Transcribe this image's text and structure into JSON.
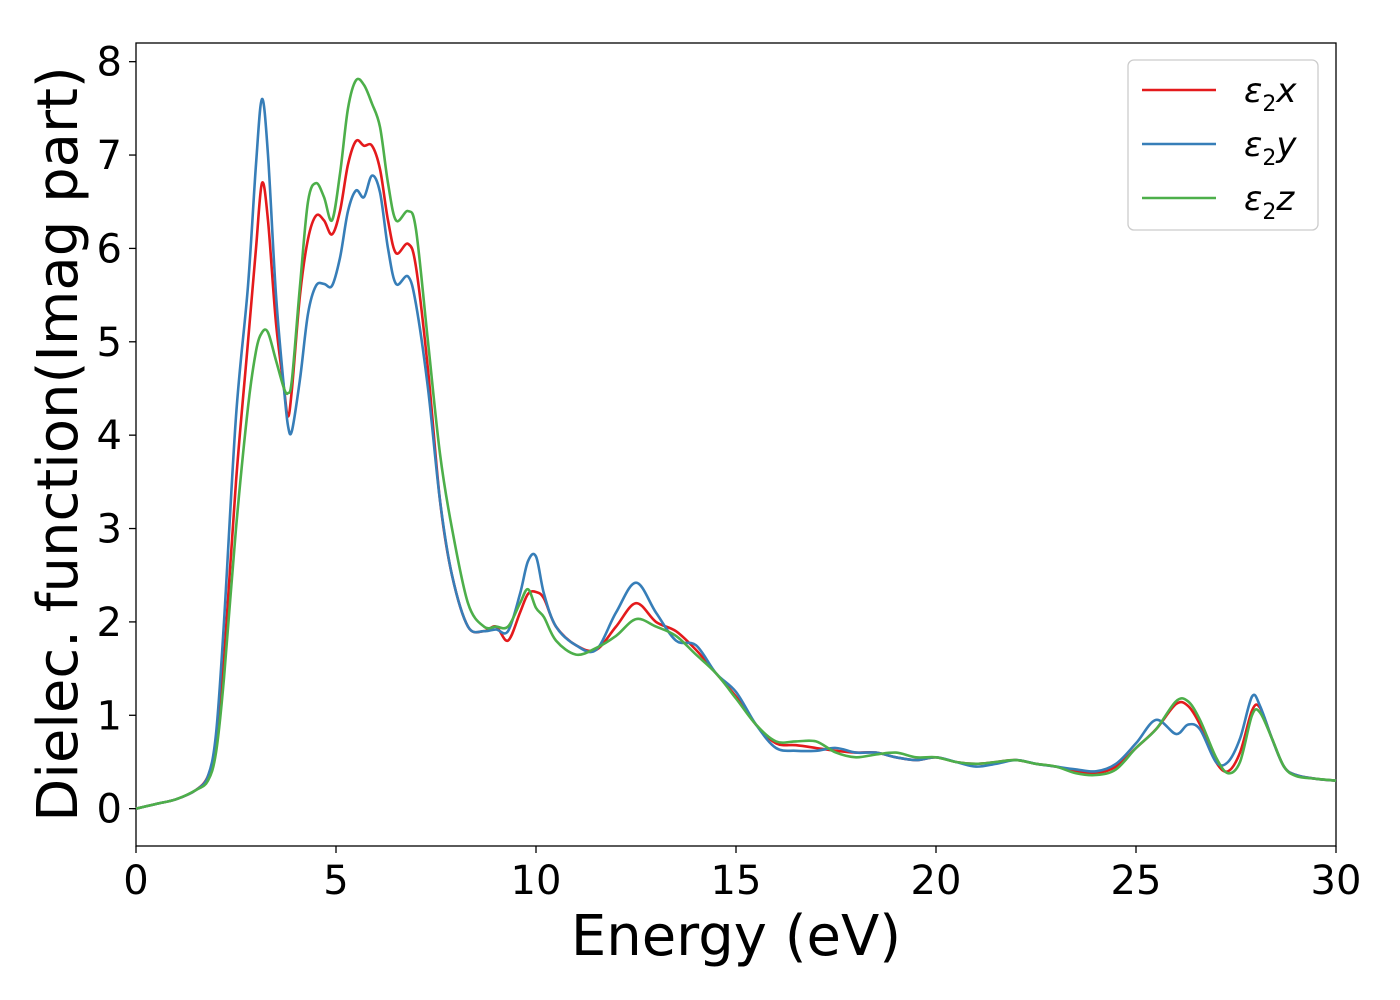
{
  "chart_data": {
    "type": "line",
    "title": "",
    "xlabel": "Energy (eV)",
    "ylabel": "Dielec. function(Imag part)",
    "xlim": [
      0,
      30
    ],
    "ylim": [
      -0.4,
      8.2
    ],
    "xticks": [
      0,
      5,
      10,
      15,
      20,
      25,
      30
    ],
    "yticks": [
      0,
      1,
      2,
      3,
      4,
      5,
      6,
      7,
      8
    ],
    "grid": false,
    "legend": {
      "position": "top-right",
      "entries": [
        {
          "symbol": "ε",
          "subscript": "2",
          "suffix": "x"
        },
        {
          "symbol": "ε",
          "subscript": "2",
          "suffix": "y"
        },
        {
          "symbol": "ε",
          "subscript": "2",
          "suffix": "z"
        }
      ]
    },
    "series": [
      {
        "color": "#e41a1c",
        "x": [
          0,
          0.5,
          1,
          1.5,
          1.8,
          2,
          2.2,
          2.5,
          2.8,
          3.0,
          3.15,
          3.3,
          3.5,
          3.7,
          3.8,
          3.9,
          4.1,
          4.3,
          4.5,
          4.7,
          4.9,
          5.1,
          5.3,
          5.5,
          5.7,
          5.9,
          6.1,
          6.3,
          6.5,
          6.8,
          7.0,
          7.3,
          7.6,
          7.9,
          8.3,
          8.7,
          9.0,
          9.3,
          9.6,
          9.8,
          10.0,
          10.2,
          10.5,
          11.0,
          11.5,
          12.0,
          12.5,
          13.0,
          13.5,
          14.0,
          14.5,
          15.0,
          15.5,
          16.0,
          16.5,
          17.0,
          17.5,
          18.0,
          18.5,
          19.0,
          19.5,
          20.0,
          20.5,
          21.0,
          21.5,
          22.0,
          22.5,
          23.0,
          23.5,
          24.0,
          24.5,
          25.0,
          25.5,
          26.0,
          26.3,
          26.6,
          27.0,
          27.3,
          27.6,
          27.9,
          28.1,
          28.4,
          28.7,
          29.0,
          29.5,
          30.0
        ],
        "values": [
          0,
          0.05,
          0.1,
          0.2,
          0.35,
          0.7,
          1.6,
          3.5,
          5.0,
          6.0,
          6.7,
          6.3,
          5.2,
          4.5,
          4.2,
          4.5,
          5.5,
          6.1,
          6.35,
          6.3,
          6.15,
          6.4,
          6.9,
          7.15,
          7.1,
          7.1,
          6.85,
          6.3,
          5.95,
          6.05,
          5.8,
          4.7,
          3.3,
          2.5,
          1.95,
          1.9,
          1.95,
          1.8,
          2.1,
          2.3,
          2.32,
          2.25,
          1.95,
          1.75,
          1.7,
          1.95,
          2.2,
          2.0,
          1.9,
          1.7,
          1.45,
          1.2,
          0.9,
          0.7,
          0.68,
          0.65,
          0.62,
          0.6,
          0.6,
          0.55,
          0.52,
          0.55,
          0.5,
          0.48,
          0.5,
          0.52,
          0.48,
          0.45,
          0.4,
          0.38,
          0.45,
          0.65,
          0.85,
          1.12,
          1.1,
          0.9,
          0.5,
          0.4,
          0.6,
          1.05,
          1.08,
          0.75,
          0.45,
          0.36,
          0.32,
          0.3
        ]
      },
      {
        "color": "#377eb8",
        "x": [
          0,
          0.5,
          1,
          1.5,
          1.8,
          2,
          2.2,
          2.5,
          2.8,
          3.0,
          3.15,
          3.3,
          3.5,
          3.7,
          3.8,
          3.9,
          4.1,
          4.3,
          4.5,
          4.7,
          4.9,
          5.1,
          5.3,
          5.5,
          5.7,
          5.9,
          6.1,
          6.3,
          6.5,
          6.8,
          7.0,
          7.3,
          7.6,
          7.9,
          8.3,
          8.7,
          9.0,
          9.3,
          9.6,
          9.8,
          10.0,
          10.2,
          10.5,
          11.0,
          11.5,
          12.0,
          12.5,
          13.0,
          13.5,
          14.0,
          14.5,
          15.0,
          15.5,
          16.0,
          16.5,
          17.0,
          17.5,
          18.0,
          18.5,
          19.0,
          19.5,
          20.0,
          20.5,
          21.0,
          21.5,
          22.0,
          22.5,
          23.0,
          23.5,
          24.0,
          24.5,
          25.0,
          25.5,
          26.0,
          26.3,
          26.6,
          27.0,
          27.3,
          27.6,
          27.9,
          28.1,
          28.4,
          28.7,
          29.0,
          29.5,
          30.0
        ],
        "values": [
          0,
          0.05,
          0.1,
          0.2,
          0.35,
          0.8,
          2.0,
          4.2,
          5.6,
          6.9,
          7.6,
          7.0,
          5.5,
          4.5,
          4.1,
          4.05,
          4.6,
          5.3,
          5.6,
          5.62,
          5.6,
          5.9,
          6.4,
          6.62,
          6.55,
          6.78,
          6.6,
          6.0,
          5.62,
          5.7,
          5.4,
          4.5,
          3.3,
          2.5,
          1.95,
          1.9,
          1.92,
          1.9,
          2.3,
          2.65,
          2.7,
          2.3,
          1.95,
          1.75,
          1.7,
          2.1,
          2.42,
          2.1,
          1.8,
          1.75,
          1.45,
          1.25,
          0.9,
          0.65,
          0.62,
          0.62,
          0.65,
          0.6,
          0.6,
          0.55,
          0.52,
          0.55,
          0.5,
          0.45,
          0.48,
          0.52,
          0.48,
          0.45,
          0.42,
          0.4,
          0.48,
          0.7,
          0.95,
          0.8,
          0.9,
          0.85,
          0.5,
          0.5,
          0.75,
          1.2,
          1.1,
          0.75,
          0.45,
          0.36,
          0.32,
          0.3
        ]
      },
      {
        "color": "#4daf4a",
        "x": [
          0,
          0.5,
          1,
          1.5,
          1.8,
          2,
          2.2,
          2.5,
          2.8,
          3.0,
          3.15,
          3.3,
          3.5,
          3.7,
          3.8,
          3.9,
          4.1,
          4.3,
          4.5,
          4.7,
          4.9,
          5.1,
          5.3,
          5.5,
          5.7,
          5.9,
          6.1,
          6.3,
          6.5,
          6.8,
          7.0,
          7.3,
          7.6,
          7.9,
          8.3,
          8.7,
          9.0,
          9.3,
          9.6,
          9.8,
          10.0,
          10.2,
          10.5,
          11.0,
          11.5,
          12.0,
          12.5,
          13.0,
          13.5,
          14.0,
          14.5,
          15.0,
          15.5,
          16.0,
          16.5,
          17.0,
          17.5,
          18.0,
          18.5,
          19.0,
          19.5,
          20.0,
          20.5,
          21.0,
          21.5,
          22.0,
          22.5,
          23.0,
          23.5,
          24.0,
          24.5,
          25.0,
          25.5,
          26.0,
          26.3,
          26.6,
          27.0,
          27.3,
          27.6,
          27.9,
          28.1,
          28.4,
          28.7,
          29.0,
          29.5,
          30.0
        ],
        "values": [
          0,
          0.05,
          0.1,
          0.2,
          0.3,
          0.6,
          1.4,
          3.0,
          4.3,
          4.9,
          5.1,
          5.1,
          4.8,
          4.5,
          4.45,
          4.6,
          5.6,
          6.5,
          6.7,
          6.55,
          6.3,
          6.8,
          7.5,
          7.8,
          7.75,
          7.55,
          7.3,
          6.7,
          6.3,
          6.4,
          6.2,
          5.0,
          3.8,
          3.0,
          2.2,
          1.95,
          1.95,
          1.95,
          2.2,
          2.35,
          2.15,
          2.05,
          1.8,
          1.65,
          1.72,
          1.85,
          2.03,
          1.95,
          1.85,
          1.65,
          1.45,
          1.18,
          0.9,
          0.72,
          0.72,
          0.72,
          0.6,
          0.55,
          0.58,
          0.6,
          0.55,
          0.55,
          0.5,
          0.48,
          0.5,
          0.52,
          0.48,
          0.45,
          0.38,
          0.36,
          0.42,
          0.65,
          0.85,
          1.15,
          1.15,
          0.95,
          0.55,
          0.38,
          0.5,
          1.0,
          1.03,
          0.75,
          0.45,
          0.35,
          0.32,
          0.3
        ]
      }
    ]
  }
}
